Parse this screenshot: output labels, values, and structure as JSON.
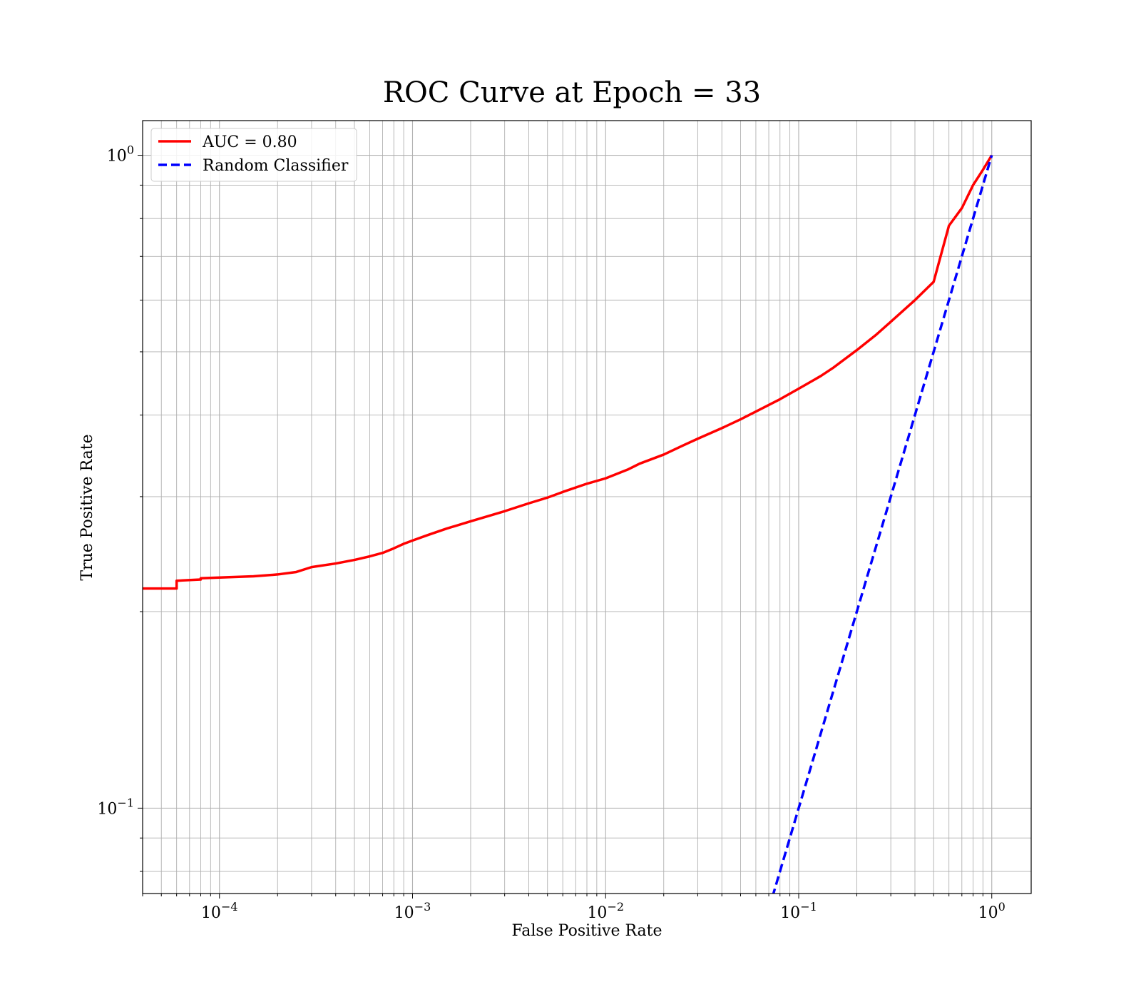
{
  "chart_data": {
    "type": "line",
    "title": "ROC Curve at Epoch = 33",
    "xlabel": "False Positive Rate",
    "ylabel": "True Positive Rate",
    "xscale": "log",
    "yscale": "log",
    "xlim": [
      4e-05,
      1.6
    ],
    "ylim": [
      0.074,
      1.13
    ],
    "grid": "on (major and minor)",
    "legend_position": "upper-left",
    "x_ticks": [
      {
        "value": 0.0001,
        "base": "10",
        "exp": "−4"
      },
      {
        "value": 0.001,
        "base": "10",
        "exp": "−3"
      },
      {
        "value": 0.01,
        "base": "10",
        "exp": "−2"
      },
      {
        "value": 0.1,
        "base": "10",
        "exp": "−1"
      },
      {
        "value": 1,
        "base": "10",
        "exp": "0"
      }
    ],
    "y_ticks": [
      {
        "value": 0.1,
        "base": "10",
        "exp": "−1"
      },
      {
        "value": 1,
        "base": "10",
        "exp": "0"
      }
    ],
    "series": [
      {
        "name": "AUC = 0.80",
        "color": "#ff0000",
        "style": "solid",
        "x": [
          4e-05,
          6e-05,
          6e-05,
          8e-05,
          8e-05,
          0.0001,
          0.00015,
          0.0002,
          0.00025,
          0.0003,
          0.0004,
          0.0005,
          0.0006,
          0.0007,
          0.0008,
          0.0009,
          0.001,
          0.0012,
          0.0015,
          0.002,
          0.003,
          0.004,
          0.005,
          0.006,
          0.008,
          0.01,
          0.013,
          0.015,
          0.02,
          0.025,
          0.03,
          0.04,
          0.05,
          0.06,
          0.08,
          0.1,
          0.13,
          0.15,
          0.2,
          0.25,
          0.3,
          0.4,
          0.5,
          0.6,
          0.7,
          0.8,
          0.9,
          1.0
        ],
        "y": [
          0.217,
          0.217,
          0.223,
          0.224,
          0.225,
          0.2255,
          0.2265,
          0.228,
          0.23,
          0.234,
          0.237,
          0.24,
          0.243,
          0.246,
          0.25,
          0.254,
          0.257,
          0.262,
          0.268,
          0.275,
          0.285,
          0.293,
          0.299,
          0.305,
          0.314,
          0.32,
          0.33,
          0.337,
          0.348,
          0.359,
          0.368,
          0.382,
          0.394,
          0.405,
          0.423,
          0.439,
          0.459,
          0.472,
          0.503,
          0.53,
          0.556,
          0.6,
          0.64,
          0.78,
          0.83,
          0.9,
          0.95,
          1.0
        ]
      },
      {
        "name": "Random Classifier",
        "color": "#0000ff",
        "style": "dashed",
        "x": [
          0.07,
          1.0
        ],
        "y": [
          0.07,
          1.0
        ]
      }
    ]
  }
}
